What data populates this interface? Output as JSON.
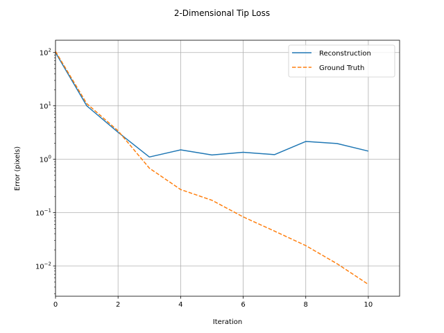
{
  "chart_data": {
    "type": "line",
    "title": "2-Dimensional Tip Loss",
    "xlabel": "Iteration",
    "ylabel": "Error (pixels)",
    "yscale": "log",
    "xlim": [
      0,
      11
    ],
    "ylim": [
      0.0027,
      170
    ],
    "xticks": [
      0,
      2,
      4,
      6,
      8,
      10
    ],
    "xtick_labels": [
      "0",
      "2",
      "4",
      "6",
      "8",
      "10"
    ],
    "yticks": [
      0.01,
      0.1,
      1,
      10,
      100
    ],
    "ytick_labels": [
      {
        "base": "10",
        "exp": "−2"
      },
      {
        "base": "10",
        "exp": "−1"
      },
      {
        "base": "10",
        "exp": "0"
      },
      {
        "base": "10",
        "exp": "1"
      },
      {
        "base": "10",
        "exp": "2"
      }
    ],
    "grid": true,
    "legend_position": "upper-right",
    "x": [
      0,
      1,
      2,
      3,
      4,
      5,
      6,
      7,
      8,
      9,
      10
    ],
    "series": [
      {
        "name": "Reconstruction",
        "color": "#1f77b4",
        "style": "solid",
        "values": [
          100,
          10,
          3.2,
          1.1,
          1.5,
          1.2,
          1.35,
          1.22,
          2.15,
          1.97,
          1.42
        ]
      },
      {
        "name": "Ground Truth",
        "color": "#ff7f0e",
        "style": "dashed",
        "values": [
          105,
          11,
          3.4,
          0.68,
          0.27,
          0.17,
          0.083,
          0.045,
          0.024,
          0.011,
          0.0045
        ]
      }
    ]
  }
}
